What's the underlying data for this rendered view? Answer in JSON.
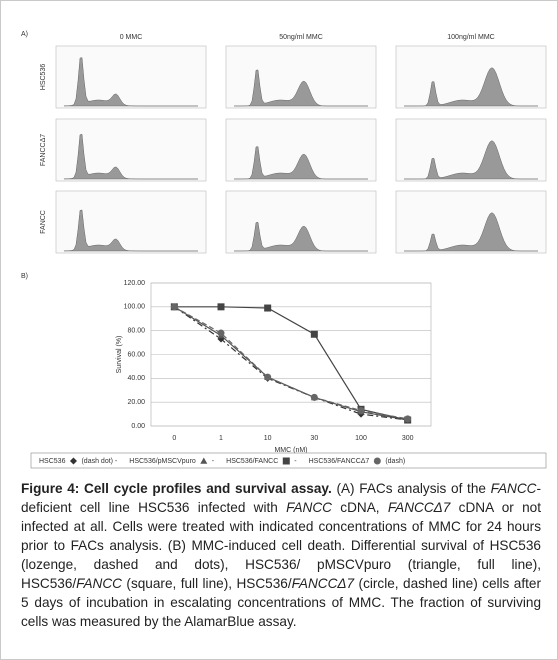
{
  "panel_a": {
    "label": "A)",
    "columns": [
      "0 MMC",
      "50ng/ml MMC",
      "100ng/ml MMC"
    ],
    "rows": [
      "HSC536",
      "FANCCΔ7",
      "FANCC"
    ]
  },
  "chart_data": {
    "type": "line",
    "panel_label": "B)",
    "y_label": "Survival (%)",
    "x_label": "MMC (nM)",
    "categories": [
      "0",
      "1",
      "10",
      "30",
      "100",
      "300"
    ],
    "ylim": [
      0,
      120
    ],
    "yticks": [
      {
        "value": 0,
        "label": "0.00"
      },
      {
        "value": 20,
        "label": "20.00"
      },
      {
        "value": 40,
        "label": "40.00"
      },
      {
        "value": 60,
        "label": "60.00"
      },
      {
        "value": 80,
        "label": "80.00"
      },
      {
        "value": 100,
        "label": "100.00"
      },
      {
        "value": 120,
        "label": "120.00"
      }
    ],
    "grid": true,
    "series": [
      {
        "name": "HSC536",
        "suffix": "(dash dot) -",
        "marker": "diamond",
        "dash": "6 3 2 3",
        "color": "#333333",
        "values": [
          100,
          73,
          40,
          24,
          10,
          5
        ]
      },
      {
        "name": "HSC536/pMSCVpuro",
        "suffix": "-",
        "marker": "triangle",
        "dash": "none",
        "color": "#555555",
        "values": [
          100,
          76,
          41,
          24,
          12,
          5
        ]
      },
      {
        "name": "HSC536/FANCC",
        "suffix": "-",
        "marker": "square",
        "dash": "none",
        "color": "#444444",
        "values": [
          100,
          100,
          99,
          77,
          14,
          5
        ]
      },
      {
        "name": "HSC536/FANCCΔ7",
        "suffix": "(dash)",
        "marker": "circle",
        "dash": "5 3",
        "color": "#666666",
        "values": [
          100,
          78,
          41,
          24,
          13,
          6
        ]
      }
    ]
  },
  "caption": {
    "title": "Figure 4: Cell cycle profiles and survival assay.",
    "parts": [
      " (A) FACs analysis of the ",
      "FANCC",
      "- deficient cell line HSC536 infected with ",
      "FANCC",
      " cDNA, ",
      "FANCCΔ7",
      " cDNA or not infected at all. Cells were treated with indicated concentrations of MMC for 24 hours prior to FACs analysis. (B) MMC-induced cell death. Differential survival of HSC536 (lozenge, dashed and dots), HSC536/ pMSCVpuro (triangle, full line), HSC536/",
      "FANCC",
      " (square, full line), HSC536/",
      "FANCCΔ7",
      " (circle, dashed line) cells after 5 days of incubation in escalating concentrations of MMC. The fraction of surviving cells was measured by the AlamarBlue assay."
    ]
  }
}
